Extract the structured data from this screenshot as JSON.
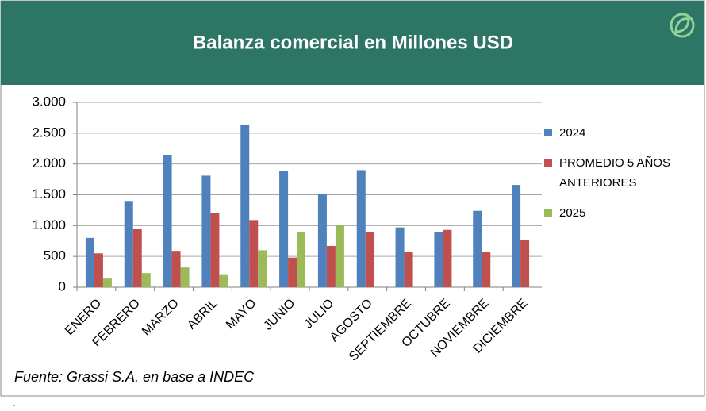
{
  "chart_data": {
    "type": "bar",
    "title": "Balanza comercial en Millones USD",
    "categories": [
      "ENERO",
      "FEBRERO",
      "MARZO",
      "ABRIL",
      "MAYO",
      "JUNIO",
      "JULIO",
      "AGOSTO",
      "SEPTIEMBRE",
      "OCTUBRE",
      "NOVIEMBRE",
      "DICIEMBRE"
    ],
    "series": [
      {
        "name": "2024",
        "color": "#4f81bd",
        "values": [
          800,
          1400,
          2150,
          1810,
          2640,
          1890,
          1510,
          1900,
          970,
          900,
          1240,
          1660
        ]
      },
      {
        "name": "PROMEDIO 5 AÑOS ANTERIORES",
        "color": "#c0504d",
        "values": [
          550,
          940,
          590,
          1200,
          1090,
          480,
          670,
          890,
          570,
          930,
          570,
          760
        ]
      },
      {
        "name": "2025",
        "color": "#9bbb59",
        "values": [
          140,
          230,
          320,
          210,
          600,
          900,
          1000,
          null,
          null,
          null,
          null,
          null
        ]
      }
    ],
    "ylim": [
      0,
      3000
    ],
    "yticks": [
      0,
      500,
      {
        "value": 1000,
        "label": "1.000"
      },
      {
        "value": 1500,
        "label": "1.500"
      },
      {
        "value": 2000,
        "label": "2.000"
      },
      {
        "value": 2500,
        "label": "2.500"
      },
      {
        "value": 3000,
        "label": "3.000"
      }
    ],
    "grid": true,
    "legend": "right",
    "source": "Fuente: Grassi S.A.  en base a INDEC",
    "footnote": "."
  }
}
